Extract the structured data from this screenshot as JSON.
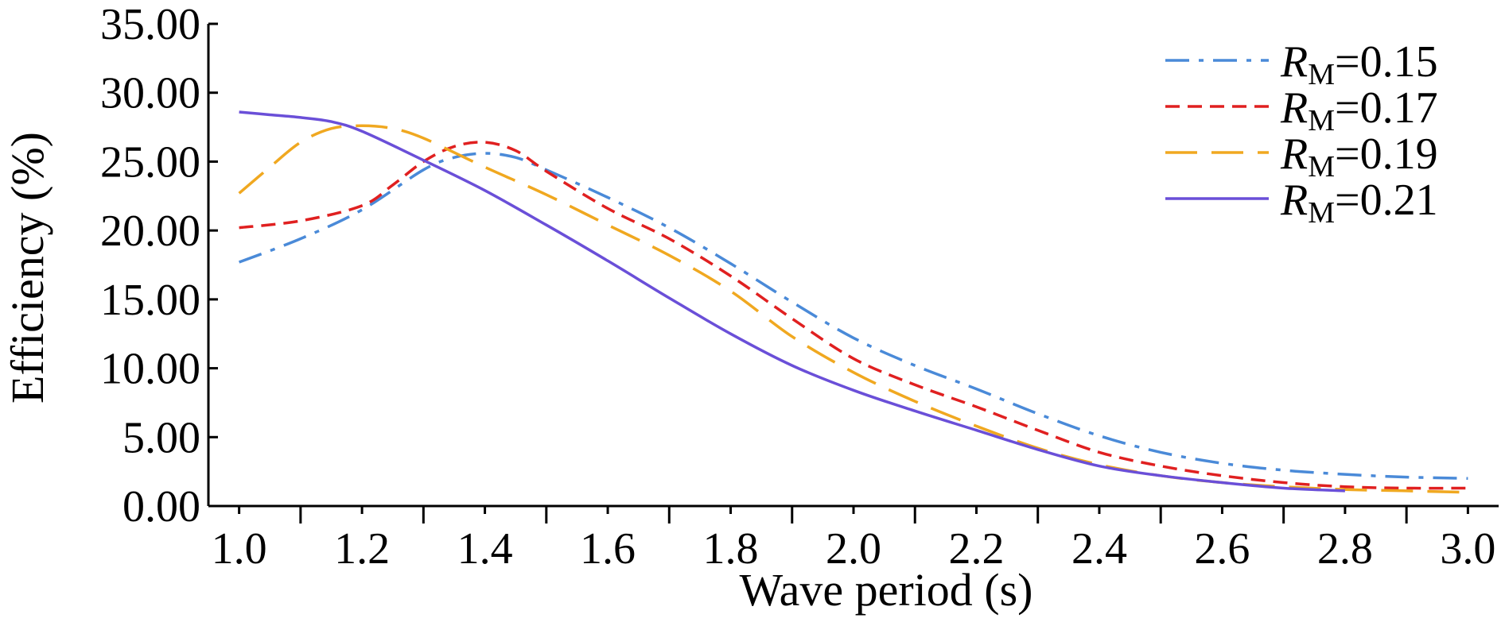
{
  "chart_data": {
    "type": "line",
    "title": "",
    "xlabel": "Wave period (s)",
    "ylabel": "Efficiency (%)",
    "xlim": [
      0.95,
      3.05
    ],
    "ylim": [
      0,
      35
    ],
    "xticks": [
      1.0,
      1.2,
      1.4,
      1.6,
      1.8,
      2.0,
      2.2,
      2.4,
      2.6,
      2.8,
      3.0
    ],
    "xtick_labels": [
      "1.0",
      "1.2",
      "1.4",
      "1.6",
      "1.8",
      "2.0",
      "2.2",
      "2.4",
      "2.6",
      "2.8",
      "3.0"
    ],
    "yticks": [
      0,
      5,
      10,
      15,
      20,
      25,
      30,
      35
    ],
    "ytick_labels": [
      "0.00",
      "5.00",
      "10.00",
      "15.00",
      "20.00",
      "25.00",
      "30.00",
      "35.00"
    ],
    "grid": false,
    "legend_position": "top-right",
    "series": [
      {
        "name": "0.15",
        "label_var": "R",
        "label_sub": "M",
        "label_eq": "=",
        "color": "#4a8ad8",
        "dash": "dashdot",
        "x": [
          1.0,
          1.1,
          1.2,
          1.3,
          1.35,
          1.4,
          1.45,
          1.5,
          1.6,
          1.7,
          1.8,
          1.9,
          2.0,
          2.1,
          2.2,
          2.3,
          2.4,
          2.5,
          2.6,
          2.7,
          2.8,
          2.9,
          3.0
        ],
        "y": [
          17.7,
          19.4,
          21.5,
          24.4,
          25.3,
          25.6,
          25.3,
          24.4,
          22.4,
          20.2,
          17.6,
          14.8,
          12.2,
          10.2,
          8.5,
          6.7,
          5.1,
          3.9,
          3.1,
          2.6,
          2.3,
          2.1,
          2.0
        ]
      },
      {
        "name": "0.17",
        "label_var": "R",
        "label_sub": "M",
        "label_eq": "=",
        "color": "#e02020",
        "dash": "shortdash",
        "x": [
          1.0,
          1.1,
          1.2,
          1.25,
          1.3,
          1.35,
          1.4,
          1.45,
          1.5,
          1.6,
          1.7,
          1.8,
          1.9,
          2.0,
          2.1,
          2.2,
          2.3,
          2.4,
          2.5,
          2.6,
          2.7,
          2.8,
          2.9,
          3.0
        ],
        "y": [
          20.2,
          20.7,
          21.8,
          23.3,
          25.0,
          26.1,
          26.4,
          25.8,
          24.3,
          21.6,
          19.4,
          16.7,
          13.6,
          10.7,
          8.8,
          7.2,
          5.5,
          3.9,
          2.9,
          2.2,
          1.7,
          1.4,
          1.3,
          1.3
        ]
      },
      {
        "name": "0.19",
        "label_var": "R",
        "label_sub": "M",
        "label_eq": "=",
        "color": "#f0a820",
        "dash": "longdash",
        "x": [
          1.0,
          1.05,
          1.1,
          1.15,
          1.2,
          1.25,
          1.3,
          1.4,
          1.5,
          1.6,
          1.7,
          1.8,
          1.9,
          2.0,
          2.1,
          2.2,
          2.3,
          2.4,
          2.5,
          2.6,
          2.7,
          2.8,
          2.9,
          3.0
        ],
        "y": [
          22.7,
          24.6,
          26.4,
          27.4,
          27.6,
          27.4,
          26.7,
          24.6,
          22.6,
          20.4,
          18.2,
          15.6,
          12.3,
          9.7,
          7.6,
          5.8,
          4.2,
          3.0,
          2.2,
          1.7,
          1.4,
          1.2,
          1.1,
          1.0
        ]
      },
      {
        "name": "0.21",
        "label_var": "R",
        "label_sub": "M",
        "label_eq": "=",
        "color": "#6a4fd8",
        "dash": "solid",
        "x": [
          1.0,
          1.05,
          1.1,
          1.15,
          1.2,
          1.3,
          1.4,
          1.5,
          1.6,
          1.7,
          1.8,
          1.9,
          2.0,
          2.1,
          2.2,
          2.3,
          2.4,
          2.5,
          2.6,
          2.7,
          2.8
        ],
        "y": [
          28.6,
          28.4,
          28.2,
          27.9,
          27.2,
          25.1,
          22.9,
          20.4,
          17.8,
          15.1,
          12.5,
          10.2,
          8.4,
          6.9,
          5.5,
          4.1,
          2.9,
          2.2,
          1.7,
          1.3,
          1.1
        ]
      }
    ]
  }
}
